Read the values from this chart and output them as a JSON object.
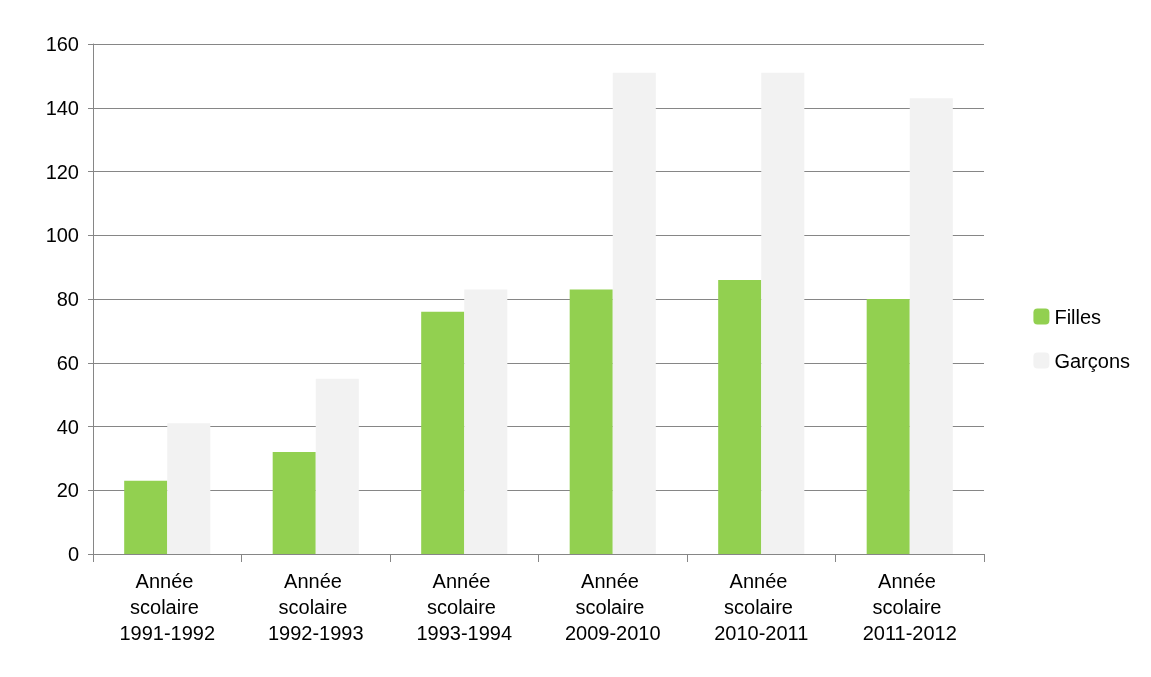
{
  "chart_data": {
    "type": "bar",
    "categories": [
      "Année scolaire 1991-1992",
      "Année scolaire 1992-1993",
      "Année scolaire 1993-1994",
      "Année scolaire 2009-2010",
      "Année scolaire 2010-2011",
      "Année scolaire 2011-2012"
    ],
    "series": [
      {
        "name": "Filles",
        "color": "#92d050",
        "values": [
          23,
          32,
          76,
          83,
          86,
          80
        ]
      },
      {
        "name": "Garçons",
        "color": "#f2f2f2",
        "values": [
          41,
          55,
          83,
          151,
          151,
          143
        ]
      }
    ],
    "ylim": [
      0,
      160
    ],
    "yticks": [
      0,
      20,
      40,
      60,
      80,
      100,
      120,
      140,
      160
    ],
    "grid": "y",
    "legend": "right"
  }
}
